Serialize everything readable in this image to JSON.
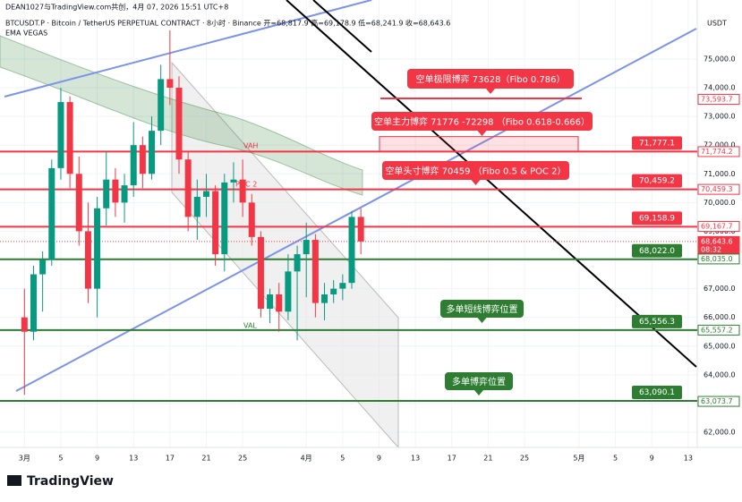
{
  "header": {
    "credit": "DEAN1027与TradingView.com共创，4月 07, 2026 15:51 UTC+8",
    "symbol": "BTCUSDT.P · Bitcoin / TetherUS PERPETUAL CONTRACT · 8小时 · Binance  开=68,817.9 高=69,178.9 低=68,241.9 收=68,643.6",
    "indicator": "EMA VEGAS",
    "currency": "USDT",
    "logo": "TradingView"
  },
  "chart_data": {
    "type": "candlestick",
    "x": [
      "2026-03-01",
      "2026-03-02",
      "2026-03-03",
      "2026-03-04",
      "2026-03-05",
      "2026-03-06",
      "2026-03-07",
      "2026-03-08",
      "2026-03-09",
      "2026-03-10",
      "2026-03-11",
      "2026-03-12",
      "2026-03-13",
      "2026-03-14",
      "2026-03-15",
      "2026-03-16",
      "2026-03-17",
      "2026-03-18",
      "2026-03-19",
      "2026-03-20",
      "2026-03-21",
      "2026-03-22",
      "2026-03-23",
      "2026-03-24",
      "2026-03-25",
      "2026-03-26",
      "2026-03-27",
      "2026-03-28",
      "2026-03-29",
      "2026-03-30",
      "2026-03-31",
      "2026-04-01",
      "2026-04-02",
      "2026-04-03",
      "2026-04-04",
      "2026-04-05",
      "2026-04-06",
      "2026-04-07"
    ],
    "open": [
      66000,
      65500,
      67500,
      68000,
      71200,
      73500,
      71000,
      69000,
      67000,
      69800,
      70800,
      70000,
      70600,
      72000,
      71000,
      72500,
      74300,
      74000,
      71500,
      69500,
      70200,
      70400,
      68200,
      70700,
      70800,
      70000,
      68800,
      66300,
      66800,
      66200,
      67600,
      68200,
      68700,
      66500,
      66800,
      67000,
      67200,
      69500
    ],
    "high": [
      67000,
      67800,
      68300,
      71500,
      74000,
      73700,
      71600,
      70000,
      70200,
      71800,
      71200,
      71000,
      72800,
      72300,
      73000,
      74800,
      76000,
      74400,
      71800,
      70800,
      71000,
      70600,
      71000,
      71400,
      71500,
      70300,
      69000,
      67000,
      67200,
      68200,
      68500,
      69300,
      68900,
      67200,
      67300,
      67500,
      69700,
      69800
    ],
    "low": [
      63300,
      65200,
      66200,
      67800,
      70800,
      70500,
      68500,
      66500,
      66000,
      69200,
      69500,
      69300,
      70200,
      70500,
      70800,
      72000,
      73400,
      71000,
      69000,
      68700,
      69500,
      67800,
      67600,
      70000,
      69500,
      68500,
      66000,
      65800,
      65500,
      65900,
      65200,
      66700,
      66000,
      65900,
      66500,
      66600,
      67000,
      68200
    ],
    "close": [
      65500,
      67500,
      68000,
      71200,
      73500,
      71000,
      69000,
      67000,
      69800,
      70800,
      70000,
      70600,
      72000,
      71000,
      72500,
      74300,
      74000,
      71500,
      69500,
      70200,
      70400,
      68200,
      70700,
      70800,
      70000,
      68800,
      66300,
      66800,
      66200,
      67600,
      68200,
      68700,
      66500,
      66800,
      67000,
      67200,
      69500,
      68643.6
    ],
    "up_color": "#089981",
    "down_color": "#f23645",
    "ylim": [
      61470,
      77056
    ],
    "xlim": [
      "2026-02-27",
      "2026-05-14"
    ],
    "yticks": [
      {
        "value": 62000,
        "label": "62,000.0"
      },
      {
        "value": 63000,
        "label": "63,000.0"
      },
      {
        "value": 64000,
        "label": "64,000.0"
      },
      {
        "value": 65000,
        "label": "65,000.0"
      },
      {
        "value": 66000,
        "label": "66,000.0"
      },
      {
        "value": 67000,
        "label": "67,000.0"
      },
      {
        "value": 68000,
        "label": "68,000.0"
      },
      {
        "value": 69000,
        "label": "69,000.0"
      },
      {
        "value": 70000,
        "label": "70,000.0"
      },
      {
        "value": 71000,
        "label": "71,000.0"
      },
      {
        "value": 72000,
        "label": "72,000.0"
      },
      {
        "value": 73000,
        "label": "73,000.0"
      },
      {
        "value": 74000,
        "label": "74,000.0"
      },
      {
        "value": 75000,
        "label": "75,000.0"
      }
    ],
    "xticks": [
      {
        "value": "2026-03-01",
        "label": "3月"
      },
      {
        "value": "2026-03-05",
        "label": "5"
      },
      {
        "value": "2026-03-09",
        "label": "9"
      },
      {
        "value": "2026-03-13",
        "label": "13"
      },
      {
        "value": "2026-03-17",
        "label": "17"
      },
      {
        "value": "2026-03-21",
        "label": "21"
      },
      {
        "value": "2026-03-25",
        "label": "25"
      },
      {
        "value": "2026-04-01",
        "label": "4月"
      },
      {
        "value": "2026-04-05",
        "label": "5"
      },
      {
        "value": "2026-04-09",
        "label": "9"
      },
      {
        "value": "2026-04-13",
        "label": "13"
      },
      {
        "value": "2026-04-17",
        "label": "17"
      },
      {
        "value": "2026-04-21",
        "label": "21"
      },
      {
        "value": "2026-04-25",
        "label": "25"
      },
      {
        "value": "2026-05-01",
        "label": "5月"
      },
      {
        "value": "2026-05-05",
        "label": "5"
      },
      {
        "value": "2026-05-09",
        "label": "9"
      },
      {
        "value": "2026-05-13",
        "label": "13"
      }
    ],
    "grid": true,
    "levels": {
      "values": [
        71777.1,
        70459.2,
        69158.9,
        68022.0,
        65556.3,
        63090.1
      ],
      "value_labels": [
        "71,777.1",
        "70,459.2",
        "69,158.9",
        "68,022.0",
        "65,556.3",
        "63,090.1"
      ],
      "colors": [
        "#f23645",
        "#f23645",
        "#f23645",
        "#2e7d32",
        "#2e7d32",
        "#2e7d32"
      ]
    },
    "price_tags": {
      "values": [
        73593.7,
        71774.2,
        70459.3,
        69167.7,
        68643.6,
        68035.0,
        65557.2,
        63073.7
      ],
      "value_labels": [
        "73,593.7",
        "71,774.2",
        "70,459.3",
        "69,167.7",
        "68,643.6",
        "68,035.0",
        "65,557.2",
        "63,073.7"
      ],
      "colors": [
        "#f23645",
        "#f23645",
        "#f23645",
        "#f23645",
        "#f23645",
        "#2e7d32",
        "#2e7d32",
        "#2e7d32"
      ]
    },
    "countdown": "08:32",
    "profile_labels": [
      "VAH",
      "POC 2",
      "VAL"
    ],
    "annotations": [
      {
        "text": "空单极限博弈 73628（Fibo 0.786）",
        "color": "#f23645"
      },
      {
        "text": "空单主力博弈 71776 -72298 （Fibo 0.618-0.666）",
        "color": "#f23645"
      },
      {
        "text": "空单头寸博弈 70459 （Fibo 0.5 & POC 2）",
        "color": "#f23645"
      },
      {
        "text": "多单短线博弈位置",
        "color": "#2e7d32"
      },
      {
        "text": "多单博弈位置",
        "color": "#2e7d32"
      }
    ]
  }
}
